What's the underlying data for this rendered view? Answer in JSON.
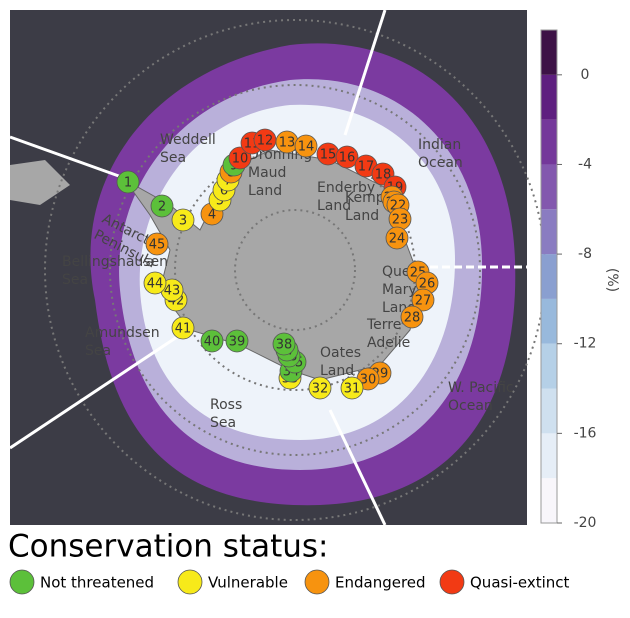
{
  "map": {
    "regions": [
      {
        "lines": [
          "Weddell",
          "Sea"
        ]
      },
      {
        "lines": [
          "Dronning",
          "Maud",
          "Land"
        ]
      },
      {
        "lines": [
          "Enderby",
          "Land"
        ]
      },
      {
        "lines": [
          "Indian",
          "Ocean"
        ]
      },
      {
        "lines": [
          "Kemp",
          "Land"
        ]
      },
      {
        "lines": [
          "Antarctic",
          "Peninsula"
        ]
      },
      {
        "lines": [
          "Bellingshausen",
          "Sea"
        ]
      },
      {
        "lines": [
          "Amundsen",
          "Sea"
        ]
      },
      {
        "lines": [
          "Queen",
          "Mary",
          "Land"
        ]
      },
      {
        "lines": [
          "Terre",
          "Adelie"
        ]
      },
      {
        "lines": [
          "Oates",
          "Land"
        ]
      },
      {
        "lines": [
          "W. Pacific",
          "Ocean"
        ]
      },
      {
        "lines": [
          "Ross",
          "Sea"
        ]
      }
    ],
    "colonies": [
      {
        "label": "1",
        "status": 0
      },
      {
        "label": "2",
        "status": 0
      },
      {
        "label": "3",
        "status": 1
      },
      {
        "label": "4",
        "status": 2
      },
      {
        "label": "5",
        "status": 1
      },
      {
        "label": "6",
        "status": 1
      },
      {
        "label": "7",
        "status": 1
      },
      {
        "label": "8",
        "status": 2
      },
      {
        "label": "9",
        "status": 0
      },
      {
        "label": "10",
        "status": 3
      },
      {
        "label": "11",
        "status": 3
      },
      {
        "label": "12",
        "status": 3
      },
      {
        "label": "13",
        "status": 2
      },
      {
        "label": "14",
        "status": 2
      },
      {
        "label": "15",
        "status": 3
      },
      {
        "label": "16",
        "status": 3
      },
      {
        "label": "17",
        "status": 3
      },
      {
        "label": "18",
        "status": 3
      },
      {
        "label": "19",
        "status": 3
      },
      {
        "label": "20",
        "status": 2
      },
      {
        "label": "21",
        "status": 2
      },
      {
        "label": "22",
        "status": 2
      },
      {
        "label": "23",
        "status": 2
      },
      {
        "label": "24",
        "status": 2
      },
      {
        "label": "25",
        "status": 2
      },
      {
        "label": "26",
        "status": 2
      },
      {
        "label": "27",
        "status": 2
      },
      {
        "label": "28",
        "status": 2
      },
      {
        "label": "29",
        "status": 2
      },
      {
        "label": "30",
        "status": 2
      },
      {
        "label": "31",
        "status": 1
      },
      {
        "label": "32",
        "status": 1
      },
      {
        "label": "33",
        "status": 1
      },
      {
        "label": "34",
        "status": 0
      },
      {
        "label": "35",
        "status": 0
      },
      {
        "label": "36",
        "status": 0
      },
      {
        "label": "37",
        "status": 0
      },
      {
        "label": "38",
        "status": 0
      },
      {
        "label": "39",
        "status": 0
      },
      {
        "label": "40",
        "status": 0
      },
      {
        "label": "41",
        "status": 1
      },
      {
        "label": "42",
        "status": 1
      },
      {
        "label": "43",
        "status": 1
      },
      {
        "label": "44",
        "status": 1
      },
      {
        "label": "45",
        "status": 2
      }
    ]
  },
  "colorbar": {
    "label": "(%)",
    "lim": [
      -20,
      2
    ],
    "ticks": [
      0,
      -4,
      -8,
      -12,
      -16,
      -20
    ],
    "colors": [
      "#f8f6fb",
      "#e6eef7",
      "#cfe0ef",
      "#b5d0e7",
      "#98b9dc",
      "#8a9fd0",
      "#8a7cc1",
      "#8358ae",
      "#74389a",
      "#5e1f7f",
      "#3d1246"
    ]
  },
  "legend": {
    "title": "Conservation status:",
    "items": [
      {
        "label": "Not threatened",
        "color": "#5cc03a"
      },
      {
        "label": "Vulnerable",
        "color": "#f7ea1a"
      },
      {
        "label": "Endangered",
        "color": "#f7930f"
      },
      {
        "label": "Quasi-extinct",
        "color": "#f23a14"
      }
    ]
  }
}
